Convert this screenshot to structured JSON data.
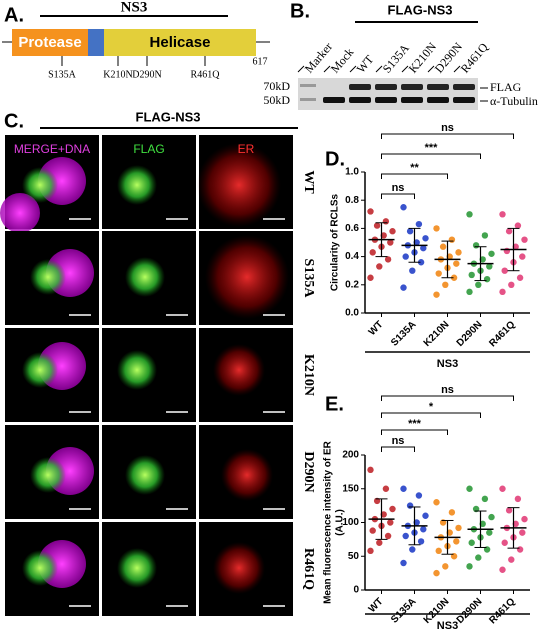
{
  "panel_a": {
    "label": "A.",
    "title": "NS3",
    "domains": [
      "Protease",
      "Helicase"
    ],
    "mutations": [
      "S135A",
      "K210N",
      "D290N",
      "R461Q"
    ],
    "length_label": "617"
  },
  "panel_b": {
    "label": "B.",
    "title": "FLAG-NS3",
    "lanes": [
      "Marker",
      "Mock",
      "WT",
      "S135A",
      "K210N",
      "D290N",
      "R461Q"
    ],
    "markers": [
      "70kD",
      "50kD"
    ],
    "bands": [
      "FLAG",
      "α-Tubulin"
    ]
  },
  "panel_c": {
    "label": "C.",
    "title": "FLAG-NS3",
    "columns": [
      "MERGE+DNA",
      "FLAG",
      "ER"
    ],
    "rows": [
      "WT",
      "S135A",
      "K210N",
      "D290N",
      "R461Q"
    ]
  },
  "chart_data": [
    {
      "type": "strip",
      "label": "D.",
      "y_label": "Circularity of RCLSs",
      "group_label": "NS3",
      "categories": [
        "WT",
        "S135A",
        "K210N",
        "D290N",
        "R461Q"
      ],
      "colors": [
        "#c0282d",
        "#2340c8",
        "#f28a1a",
        "#2f9a3c",
        "#e2407a"
      ],
      "ylim": [
        0,
        1
      ],
      "yticks": [
        {
          "value": 0,
          "label": "0.0"
        },
        0.2,
        0.4,
        0.6,
        0.8,
        {
          "value": 1,
          "label": "1.0"
        }
      ],
      "points": [
        [
          0.72,
          0.65,
          0.62,
          0.58,
          0.55,
          0.52,
          0.5,
          0.47,
          0.43,
          0.38,
          0.33,
          0.25
        ],
        [
          0.75,
          0.63,
          0.58,
          0.53,
          0.5,
          0.48,
          0.46,
          0.43,
          0.4,
          0.36,
          0.3,
          0.18
        ],
        [
          0.6,
          0.52,
          0.47,
          0.43,
          0.4,
          0.38,
          0.35,
          0.32,
          0.28,
          0.25,
          0.2,
          0.13
        ],
        [
          0.7,
          0.55,
          0.48,
          0.42,
          0.38,
          0.35,
          0.33,
          0.3,
          0.27,
          0.24,
          0.2,
          0.15
        ],
        [
          0.7,
          0.62,
          0.58,
          0.52,
          0.47,
          0.44,
          0.4,
          0.36,
          0.3,
          0.25,
          0.2,
          0.15
        ]
      ],
      "mean": [
        0.52,
        0.48,
        0.38,
        0.35,
        0.45
      ],
      "sd": [
        0.12,
        0.12,
        0.13,
        0.12,
        0.15
      ],
      "significance": [
        "ns",
        "**",
        "***",
        "ns"
      ]
    },
    {
      "type": "strip",
      "label": "E.",
      "y_label": [
        "Mean fluorescence intensity of ER",
        "(A.U.)"
      ],
      "group_label": "NS3",
      "categories": [
        "WT",
        "S135A",
        "K210N",
        "D290N",
        "R461Q"
      ],
      "colors": [
        "#c0282d",
        "#2340c8",
        "#f28a1a",
        "#2f9a3c",
        "#e2407a"
      ],
      "ylim": [
        0,
        200
      ],
      "yticks": [
        0,
        50,
        100,
        150,
        200
      ],
      "points": [
        [
          178,
          150,
          132,
          120,
          112,
          105,
          100,
          95,
          88,
          80,
          70,
          58
        ],
        [
          150,
          140,
          125,
          110,
          100,
          95,
          90,
          85,
          80,
          72,
          60,
          40
        ],
        [
          130,
          115,
          100,
          92,
          85,
          78,
          72,
          65,
          58,
          50,
          35,
          25
        ],
        [
          150,
          135,
          120,
          108,
          98,
          90,
          85,
          78,
          70,
          60,
          48,
          35
        ],
        [
          150,
          135,
          118,
          105,
          98,
          92,
          85,
          78,
          70,
          60,
          45,
          30
        ]
      ],
      "mean": [
        105,
        95,
        78,
        90,
        92
      ],
      "sd": [
        30,
        28,
        25,
        27,
        30
      ],
      "significance": [
        "ns",
        "***",
        "*",
        "ns"
      ]
    }
  ]
}
